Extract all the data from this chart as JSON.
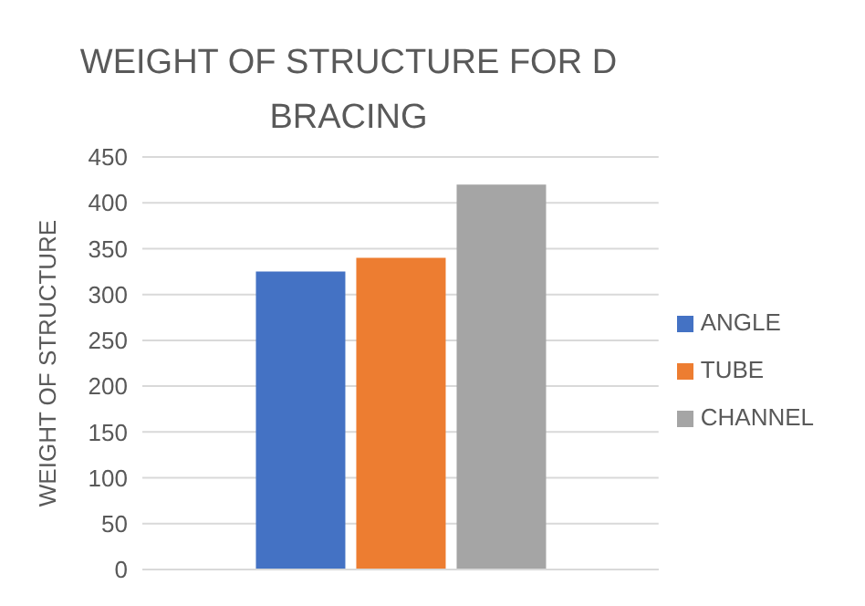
{
  "chart_data": {
    "type": "bar",
    "title": "WEIGHT OF STRUCTURE FOR D BRACING",
    "ylabel": "WEIGHT OF STRUCTURE",
    "categories": [
      null
    ],
    "series": [
      {
        "name": "ANGLE",
        "color": "#4472c4",
        "values": [
          325
        ]
      },
      {
        "name": "TUBE",
        "color": "#ed7d31",
        "values": [
          340
        ]
      },
      {
        "name": "CHANNEL",
        "color": "#a5a5a5",
        "values": [
          420
        ]
      }
    ],
    "ylim": [
      0,
      450
    ],
    "yticks": [
      0,
      50,
      100,
      150,
      200,
      250,
      300,
      350,
      400,
      450
    ],
    "grid": "y",
    "legend": "right"
  }
}
